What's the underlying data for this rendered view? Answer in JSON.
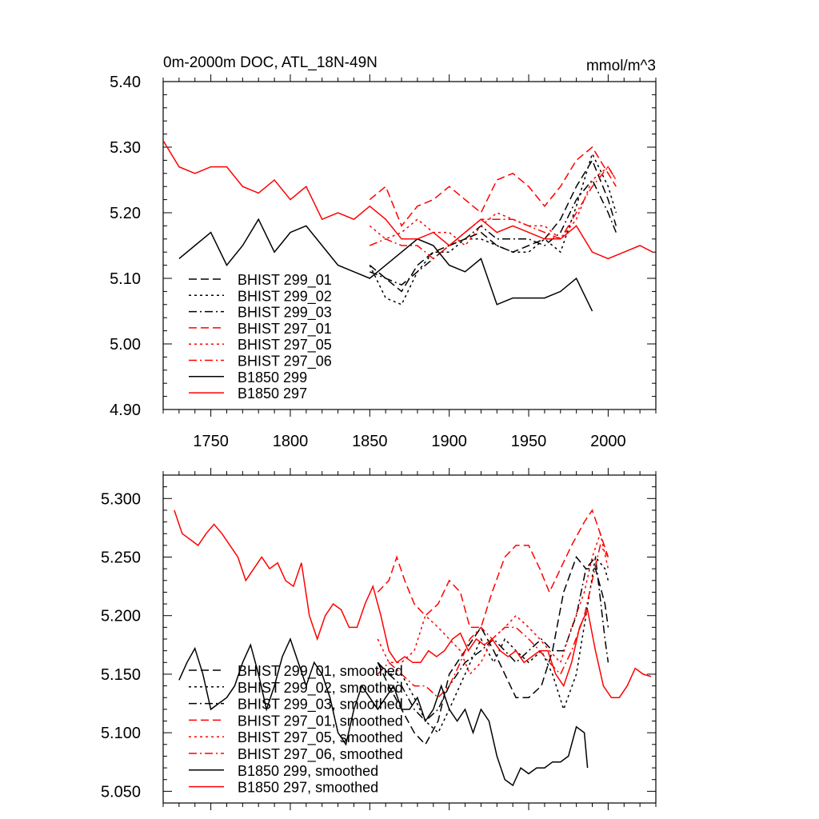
{
  "chart_data": [
    {
      "type": "line",
      "title": "0m-2000m DOC, ATL_18N-49N",
      "units": "mmol/m^3",
      "xlim": [
        1720,
        2030
      ],
      "ylim": [
        4.9,
        5.4
      ],
      "xticks": [
        1750,
        1800,
        1850,
        1900,
        1950,
        2000
      ],
      "xtick_labels": [
        "1750",
        "1800",
        "1850",
        "1900",
        "1950",
        "2000"
      ],
      "yticks": [
        4.9,
        5.0,
        5.1,
        5.2,
        5.3,
        5.4
      ],
      "ytick_labels": [
        "4.90",
        "5.00",
        "5.10",
        "5.20",
        "5.30",
        "5.40"
      ],
      "legend": [
        "BHIST 299_01",
        "BHIST 299_02",
        "BHIST 299_03",
        "BHIST 297_01",
        "BHIST 297_05",
        "BHIST 297_06",
        "B1850 299",
        "B1850 297"
      ],
      "legend_position": "lower-left",
      "series": [
        {
          "name": "BHIST 299_01",
          "color": "#000000",
          "dash": "dash",
          "x": [
            1850,
            1860,
            1870,
            1880,
            1890,
            1900,
            1910,
            1920,
            1930,
            1940,
            1950,
            1960,
            1970,
            1980,
            1990,
            2000,
            2005
          ],
          "y": [
            5.12,
            5.1,
            5.08,
            5.12,
            5.14,
            5.15,
            5.16,
            5.17,
            5.15,
            5.14,
            5.15,
            5.16,
            5.19,
            5.24,
            5.28,
            5.22,
            5.18
          ]
        },
        {
          "name": "BHIST 299_02",
          "color": "#000000",
          "dash": "dot",
          "x": [
            1850,
            1860,
            1870,
            1880,
            1890,
            1900,
            1910,
            1920,
            1930,
            1940,
            1950,
            1960,
            1970,
            1980,
            1990,
            2000,
            2005
          ],
          "y": [
            5.12,
            5.07,
            5.06,
            5.11,
            5.14,
            5.14,
            5.16,
            5.16,
            5.15,
            5.14,
            5.14,
            5.16,
            5.14,
            5.21,
            5.29,
            5.24,
            5.2
          ]
        },
        {
          "name": "BHIST 299_03",
          "color": "#000000",
          "dash": "dashdot",
          "x": [
            1850,
            1860,
            1870,
            1880,
            1890,
            1900,
            1910,
            1920,
            1930,
            1940,
            1950,
            1960,
            1970,
            1980,
            1990,
            2000,
            2005
          ],
          "y": [
            5.11,
            5.1,
            5.09,
            5.11,
            5.13,
            5.15,
            5.16,
            5.18,
            5.16,
            5.16,
            5.16,
            5.15,
            5.17,
            5.22,
            5.25,
            5.2,
            5.17
          ]
        },
        {
          "name": "BHIST 297_01",
          "color": "#ff0000",
          "dash": "dash",
          "x": [
            1850,
            1860,
            1870,
            1880,
            1890,
            1900,
            1910,
            1920,
            1930,
            1940,
            1950,
            1960,
            1970,
            1980,
            1990,
            2000,
            2005
          ],
          "y": [
            5.22,
            5.24,
            5.18,
            5.21,
            5.22,
            5.24,
            5.22,
            5.2,
            5.25,
            5.26,
            5.24,
            5.21,
            5.24,
            5.28,
            5.3,
            5.26,
            5.24
          ]
        },
        {
          "name": "BHIST 297_05",
          "color": "#ff0000",
          "dash": "dot",
          "x": [
            1850,
            1860,
            1870,
            1880,
            1890,
            1900,
            1910,
            1920,
            1930,
            1940,
            1950,
            1960,
            1970,
            1980,
            1990,
            2000,
            2005
          ],
          "y": [
            5.18,
            5.16,
            5.17,
            5.19,
            5.17,
            5.17,
            5.15,
            5.18,
            5.2,
            5.19,
            5.18,
            5.18,
            5.16,
            5.19,
            5.25,
            5.27,
            5.25
          ]
        },
        {
          "name": "BHIST 297_06",
          "color": "#ff0000",
          "dash": "dashdot",
          "x": [
            1850,
            1860,
            1870,
            1880,
            1890,
            1900,
            1910,
            1920,
            1930,
            1940,
            1950,
            1960,
            1970,
            1980,
            1990,
            2000,
            2005
          ],
          "y": [
            5.15,
            5.16,
            5.15,
            5.15,
            5.13,
            5.15,
            5.17,
            5.19,
            5.19,
            5.19,
            5.18,
            5.17,
            5.16,
            5.2,
            5.24,
            5.27,
            5.25
          ]
        },
        {
          "name": "B1850 299",
          "color": "#000000",
          "dash": "solid",
          "x": [
            1730,
            1740,
            1750,
            1760,
            1770,
            1780,
            1790,
            1800,
            1810,
            1820,
            1830,
            1840,
            1850,
            1860,
            1870,
            1880,
            1890,
            1900,
            1910,
            1920,
            1930,
            1940,
            1950,
            1960,
            1970,
            1980,
            1990
          ],
          "y": [
            5.13,
            5.15,
            5.17,
            5.12,
            5.15,
            5.19,
            5.14,
            5.17,
            5.18,
            5.15,
            5.12,
            5.11,
            5.1,
            5.12,
            5.14,
            5.16,
            5.15,
            5.12,
            5.11,
            5.13,
            5.06,
            5.07,
            5.07,
            5.07,
            5.08,
            5.1,
            5.05
          ]
        },
        {
          "name": "B1850 297",
          "color": "#ff0000",
          "dash": "solid",
          "x": [
            1720,
            1730,
            1740,
            1750,
            1760,
            1770,
            1780,
            1790,
            1800,
            1810,
            1820,
            1830,
            1840,
            1850,
            1860,
            1870,
            1880,
            1890,
            1900,
            1910,
            1920,
            1930,
            1940,
            1950,
            1960,
            1970,
            1980,
            1990,
            2000,
            2010,
            2020,
            2028
          ],
          "y": [
            5.31,
            5.27,
            5.26,
            5.27,
            5.27,
            5.24,
            5.23,
            5.25,
            5.22,
            5.24,
            5.19,
            5.2,
            5.19,
            5.21,
            5.19,
            5.16,
            5.16,
            5.17,
            5.15,
            5.17,
            5.19,
            5.17,
            5.18,
            5.17,
            5.16,
            5.16,
            5.18,
            5.14,
            5.13,
            5.14,
            5.15,
            5.14
          ]
        }
      ]
    },
    {
      "type": "line",
      "title": "",
      "xlim": [
        1720,
        2030
      ],
      "ylim": [
        5.04,
        5.32
      ],
      "xticks": [
        1750,
        1800,
        1850,
        1900,
        1950,
        2000
      ],
      "yticks": [
        5.05,
        5.1,
        5.15,
        5.2,
        5.25,
        5.3
      ],
      "ytick_labels": [
        "5.050",
        "5.100",
        "5.150",
        "5.200",
        "5.250",
        "5.300"
      ],
      "legend": [
        "BHIST 299_01, smoothed",
        "BHIST 299_02, smoothed",
        "BHIST 299_03, smoothed",
        "BHIST 297_01, smoothed",
        "BHIST 297_05, smoothed",
        "BHIST 297_06, smoothed",
        "B1850 299, smoothed",
        "B1850 297, smoothed"
      ],
      "legend_position": "lower-left",
      "series": [
        {
          "name": "BHIST 299_01, smoothed",
          "color": "#000000",
          "dash": "dash",
          "x": [
            1855,
            1862,
            1870,
            1878,
            1885,
            1893,
            1900,
            1910,
            1920,
            1928,
            1935,
            1942,
            1950,
            1958,
            1965,
            1972,
            1980,
            1986,
            1992,
            1998,
            2000
          ],
          "y": [
            5.16,
            5.14,
            5.12,
            5.1,
            5.09,
            5.11,
            5.15,
            5.17,
            5.19,
            5.17,
            5.15,
            5.13,
            5.13,
            5.14,
            5.17,
            5.22,
            5.25,
            5.24,
            5.24,
            5.21,
            5.19
          ]
        },
        {
          "name": "BHIST 299_02, smoothed",
          "color": "#000000",
          "dash": "dot",
          "x": [
            1855,
            1862,
            1870,
            1878,
            1885,
            1893,
            1900,
            1910,
            1920,
            1928,
            1935,
            1942,
            1950,
            1958,
            1965,
            1972,
            1980,
            1986,
            1992,
            1998,
            2000
          ],
          "y": [
            5.16,
            5.15,
            5.15,
            5.13,
            5.11,
            5.1,
            5.12,
            5.15,
            5.18,
            5.16,
            5.18,
            5.17,
            5.16,
            5.17,
            5.15,
            5.12,
            5.15,
            5.2,
            5.25,
            5.24,
            5.23
          ]
        },
        {
          "name": "BHIST 299_03, smoothed",
          "color": "#000000",
          "dash": "dashdot",
          "x": [
            1855,
            1862,
            1870,
            1878,
            1885,
            1893,
            1900,
            1910,
            1920,
            1928,
            1935,
            1942,
            1950,
            1958,
            1965,
            1972,
            1980,
            1986,
            1992,
            1998,
            2000
          ],
          "y": [
            5.16,
            5.15,
            5.14,
            5.12,
            5.11,
            5.12,
            5.14,
            5.16,
            5.17,
            5.18,
            5.17,
            5.16,
            5.17,
            5.18,
            5.17,
            5.17,
            5.2,
            5.24,
            5.25,
            5.18,
            5.16
          ]
        },
        {
          "name": "BHIST 297_01, smoothed",
          "color": "#ff0000",
          "dash": "dash",
          "x": [
            1855,
            1862,
            1867,
            1872,
            1878,
            1885,
            1893,
            1900,
            1907,
            1913,
            1920,
            1927,
            1935,
            1942,
            1950,
            1957,
            1963,
            1970,
            1977,
            1985,
            1990,
            1995,
            2000
          ],
          "y": [
            5.22,
            5.23,
            5.25,
            5.23,
            5.21,
            5.2,
            5.21,
            5.23,
            5.22,
            5.19,
            5.19,
            5.22,
            5.25,
            5.26,
            5.26,
            5.24,
            5.22,
            5.24,
            5.26,
            5.28,
            5.29,
            5.27,
            5.25
          ]
        },
        {
          "name": "BHIST 297_05, smoothed",
          "color": "#ff0000",
          "dash": "dot",
          "x": [
            1855,
            1862,
            1870,
            1878,
            1885,
            1893,
            1900,
            1907,
            1913,
            1920,
            1927,
            1935,
            1942,
            1950,
            1957,
            1963,
            1970,
            1977,
            1985,
            1990,
            1995,
            2000
          ],
          "y": [
            5.18,
            5.16,
            5.16,
            5.17,
            5.2,
            5.19,
            5.18,
            5.17,
            5.15,
            5.16,
            5.18,
            5.19,
            5.2,
            5.19,
            5.18,
            5.17,
            5.16,
            5.19,
            5.22,
            5.25,
            5.27,
            5.24
          ]
        },
        {
          "name": "BHIST 297_06, smoothed",
          "color": "#ff0000",
          "dash": "dashdot",
          "x": [
            1855,
            1862,
            1870,
            1878,
            1885,
            1893,
            1900,
            1907,
            1913,
            1920,
            1927,
            1935,
            1942,
            1950,
            1957,
            1963,
            1970,
            1977,
            1985,
            1990,
            1995,
            2000
          ],
          "y": [
            5.15,
            5.16,
            5.15,
            5.14,
            5.14,
            5.13,
            5.14,
            5.16,
            5.18,
            5.19,
            5.18,
            5.19,
            5.19,
            5.18,
            5.17,
            5.16,
            5.15,
            5.17,
            5.2,
            5.23,
            5.26,
            5.25
          ]
        },
        {
          "name": "B1850 299, smoothed",
          "color": "#000000",
          "dash": "solid",
          "x": [
            1730,
            1735,
            1740,
            1745,
            1750,
            1755,
            1760,
            1765,
            1770,
            1775,
            1780,
            1785,
            1790,
            1795,
            1800,
            1805,
            1810,
            1815,
            1820,
            1825,
            1830,
            1835,
            1840,
            1845,
            1850,
            1855,
            1860,
            1865,
            1870,
            1875,
            1880,
            1885,
            1890,
            1895,
            1900,
            1905,
            1910,
            1915,
            1920,
            1925,
            1930,
            1935,
            1940,
            1945,
            1950,
            1955,
            1960,
            1965,
            1970,
            1975,
            1980,
            1985,
            1987
          ],
          "y": [
            5.145,
            5.16,
            5.172,
            5.15,
            5.12,
            5.125,
            5.13,
            5.14,
            5.16,
            5.175,
            5.15,
            5.12,
            5.14,
            5.165,
            5.18,
            5.16,
            5.14,
            5.16,
            5.15,
            5.13,
            5.1,
            5.09,
            5.12,
            5.14,
            5.13,
            5.12,
            5.13,
            5.14,
            5.12,
            5.12,
            5.13,
            5.11,
            5.12,
            5.14,
            5.12,
            5.11,
            5.12,
            5.1,
            5.12,
            5.11,
            5.08,
            5.06,
            5.055,
            5.07,
            5.065,
            5.07,
            5.07,
            5.075,
            5.075,
            5.08,
            5.105,
            5.1,
            5.07
          ]
        },
        {
          "name": "B1850 297, smoothed",
          "color": "#ff0000",
          "dash": "solid",
          "x": [
            1727,
            1732,
            1737,
            1742,
            1747,
            1752,
            1757,
            1762,
            1767,
            1772,
            1777,
            1782,
            1787,
            1792,
            1797,
            1802,
            1807,
            1812,
            1817,
            1822,
            1827,
            1832,
            1837,
            1842,
            1847,
            1852,
            1857,
            1862,
            1867,
            1872,
            1877,
            1882,
            1887,
            1892,
            1897,
            1902,
            1907,
            1912,
            1917,
            1922,
            1927,
            1932,
            1937,
            1942,
            1947,
            1952,
            1957,
            1962,
            1967,
            1972,
            1977,
            1982,
            1987,
            1992,
            1997,
            2002,
            2007,
            2012,
            2017,
            2022,
            2027
          ],
          "y": [
            5.29,
            5.27,
            5.265,
            5.26,
            5.27,
            5.278,
            5.27,
            5.26,
            5.25,
            5.23,
            5.24,
            5.25,
            5.24,
            5.245,
            5.23,
            5.225,
            5.245,
            5.2,
            5.18,
            5.2,
            5.21,
            5.205,
            5.19,
            5.19,
            5.21,
            5.225,
            5.2,
            5.17,
            5.16,
            5.165,
            5.16,
            5.16,
            5.17,
            5.165,
            5.17,
            5.18,
            5.185,
            5.17,
            5.18,
            5.175,
            5.18,
            5.17,
            5.165,
            5.17,
            5.16,
            5.165,
            5.17,
            5.17,
            5.15,
            5.14,
            5.16,
            5.19,
            5.205,
            5.17,
            5.14,
            5.13,
            5.13,
            5.14,
            5.155,
            5.15,
            5.148
          ]
        }
      ]
    }
  ]
}
